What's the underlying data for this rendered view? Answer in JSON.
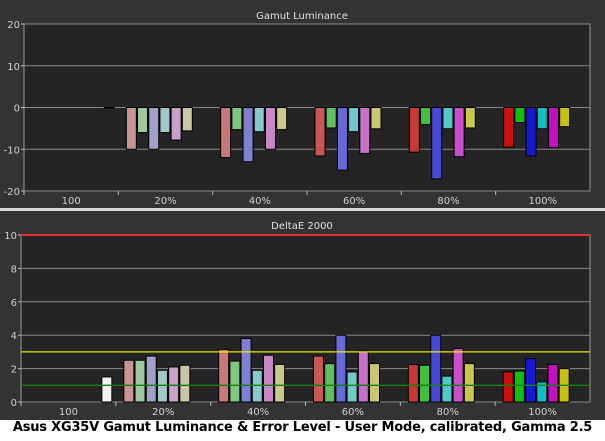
{
  "caption": "Asus XG35V Gamut Luminance & Error Level - User Mode, calibrated, Gamma 2.5",
  "chart_data": [
    {
      "type": "bar",
      "title": "Gamut Luminance",
      "categories": [
        "100",
        "20%",
        "40%",
        "60%",
        "80%",
        "100%"
      ],
      "ylim": [
        -20,
        20
      ],
      "yticks": [
        20,
        10,
        0,
        -10,
        -20
      ],
      "grid": true,
      "series_colors_by_saturation": {
        "20%": [
          "#c89494",
          "#a0c8a0",
          "#a0a0c8",
          "#a0c8c8",
          "#c8a0c8",
          "#c8c8a8"
        ],
        "40%": [
          "#c87878",
          "#80c880",
          "#8080d0",
          "#88c8c8",
          "#c888c8",
          "#c8c890"
        ],
        "60%": [
          "#c85858",
          "#60c060",
          "#6868d8",
          "#70c8c8",
          "#c870c8",
          "#c8c870"
        ],
        "80%": [
          "#c83838",
          "#40c040",
          "#4848d8",
          "#50c8c8",
          "#c850c8",
          "#c8c850"
        ],
        "100%": [
          "#cc1010",
          "#10c010",
          "#1818cc",
          "#10c0c0",
          "#c010c0",
          "#c8c010"
        ]
      },
      "groups": [
        {
          "category": "100",
          "values": [
            0
          ],
          "colors": [
            "#e0e0e0"
          ]
        },
        {
          "category": "20%",
          "values": [
            -10,
            -6,
            -10,
            -6,
            -7.8,
            -5.6
          ]
        },
        {
          "category": "40%",
          "values": [
            -12,
            -5.3,
            -13,
            -5.8,
            -10,
            -5.3
          ]
        },
        {
          "category": "60%",
          "values": [
            -11.6,
            -4.9,
            -15,
            -5.8,
            -11,
            -5.1
          ]
        },
        {
          "category": "80%",
          "values": [
            -10.7,
            -4.1,
            -17.1,
            -5.1,
            -11.8,
            -4.9
          ]
        },
        {
          "category": "100%",
          "values": [
            -9.5,
            -3.6,
            -11.6,
            -5.1,
            -9.6,
            -4.6
          ]
        }
      ]
    },
    {
      "type": "bar",
      "title": "DeltaE 2000",
      "categories": [
        "100",
        "20%",
        "40%",
        "60%",
        "80%",
        "100%"
      ],
      "ylim": [
        0,
        10
      ],
      "yticks": [
        10,
        8,
        6,
        4,
        2,
        0
      ],
      "grid": true,
      "reference_lines": [
        {
          "value": 10,
          "color": "#e03030"
        },
        {
          "value": 3,
          "color": "#e8e800"
        },
        {
          "value": 1,
          "color": "#108010"
        }
      ],
      "groups": [
        {
          "category": "100",
          "values": [
            1.5
          ],
          "colors": [
            "#f0f0f0"
          ]
        },
        {
          "category": "20%",
          "values": [
            2.5,
            2.5,
            2.75,
            1.9,
            2.1,
            2.2
          ]
        },
        {
          "category": "40%",
          "values": [
            3.15,
            2.45,
            3.8,
            1.9,
            2.8,
            2.25
          ]
        },
        {
          "category": "60%",
          "values": [
            2.75,
            2.3,
            4.0,
            1.8,
            3.05,
            2.3
          ]
        },
        {
          "category": "80%",
          "values": [
            2.25,
            2.2,
            4.0,
            1.55,
            3.2,
            2.3
          ]
        },
        {
          "category": "100%",
          "values": [
            1.8,
            1.85,
            2.6,
            1.2,
            2.25,
            2.0
          ]
        }
      ]
    }
  ]
}
